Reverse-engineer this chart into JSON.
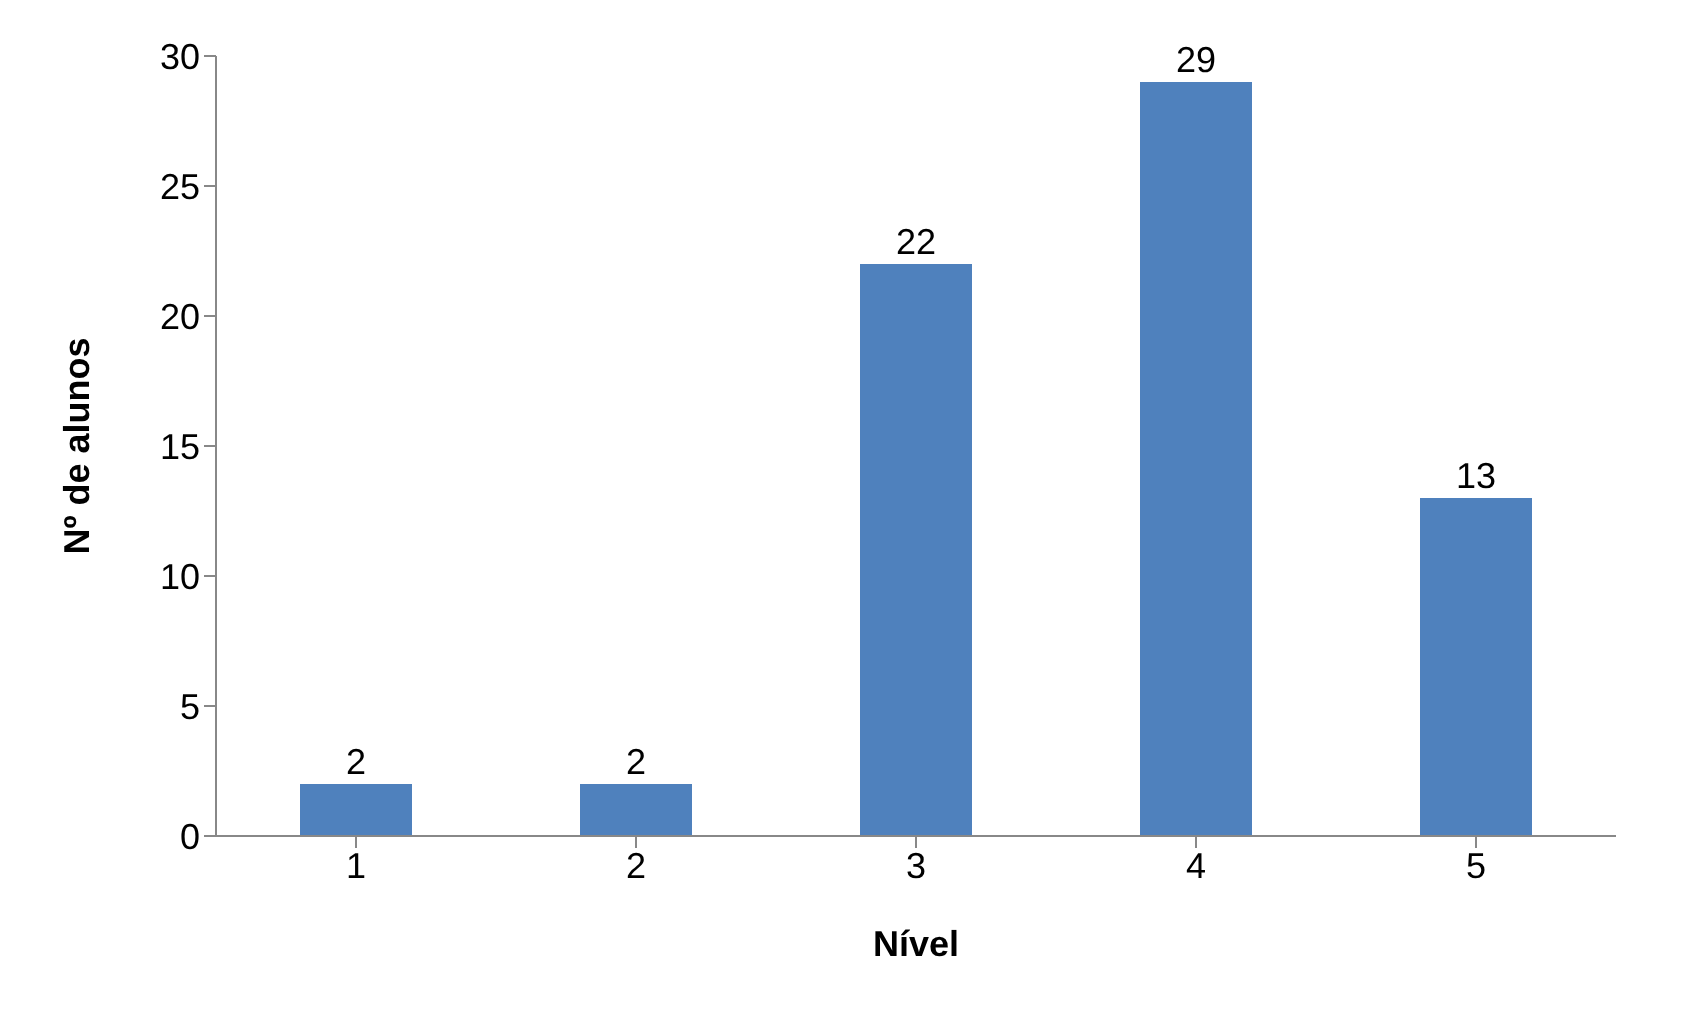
{
  "chart_data": {
    "type": "bar",
    "xlabel": "Nível",
    "ylabel": "Nº de alunos",
    "categories": [
      "1",
      "2",
      "3",
      "4",
      "5"
    ],
    "values": [
      2,
      2,
      22,
      29,
      13
    ],
    "color": "#4f81bd",
    "ylim": [
      0,
      30
    ],
    "yticks": [
      0,
      5,
      10,
      15,
      20,
      25,
      30
    ],
    "data_labels": true,
    "grid": false,
    "legend": false
  }
}
